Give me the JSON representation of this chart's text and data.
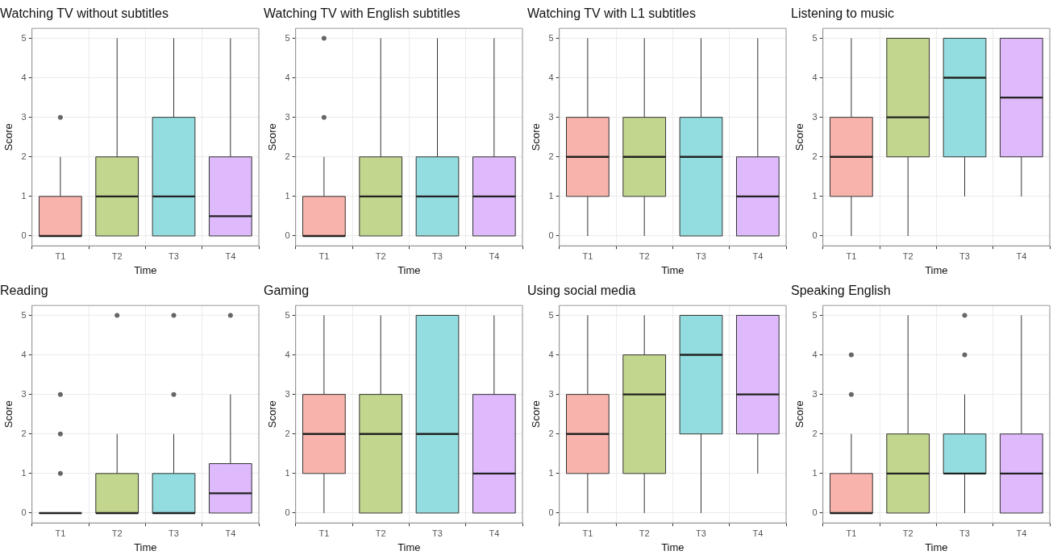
{
  "chart_data": [
    {
      "type": "box",
      "title": "Watching TV without subtitles",
      "xlabel": "Time",
      "ylabel": "Score",
      "categories": [
        "T1",
        "T2",
        "T3",
        "T4"
      ],
      "colors": [
        "#f8b3ac",
        "#c2d68e",
        "#93dde0",
        "#deb9fb"
      ],
      "ylim": [
        -0.25,
        5.25
      ],
      "yticks": [
        0,
        1,
        2,
        3,
        4,
        5
      ],
      "grid": true,
      "boxes": [
        {
          "low": 0,
          "q1": 0,
          "median": 0,
          "q3": 1,
          "high": 2,
          "outliers": [
            3
          ]
        },
        {
          "low": 0,
          "q1": 0,
          "median": 1,
          "q3": 2,
          "high": 5
        },
        {
          "low": 0,
          "q1": 0,
          "median": 1,
          "q3": 3,
          "high": 5
        },
        {
          "low": 0,
          "q1": 0,
          "median": 0.5,
          "q3": 2,
          "high": 5
        }
      ]
    },
    {
      "type": "box",
      "title": "Watching TV with English subtitles",
      "xlabel": "Time",
      "ylabel": "Score",
      "categories": [
        "T1",
        "T2",
        "T3",
        "T4"
      ],
      "colors": [
        "#f8b3ac",
        "#c2d68e",
        "#93dde0",
        "#deb9fb"
      ],
      "ylim": [
        -0.25,
        5.25
      ],
      "yticks": [
        0,
        1,
        2,
        3,
        4,
        5
      ],
      "grid": true,
      "boxes": [
        {
          "low": 0,
          "q1": 0,
          "median": 0,
          "q3": 1,
          "high": 2,
          "outliers": [
            3,
            5
          ]
        },
        {
          "low": 0,
          "q1": 0,
          "median": 1,
          "q3": 2,
          "high": 5
        },
        {
          "low": 0,
          "q1": 0,
          "median": 1,
          "q3": 2,
          "high": 5
        },
        {
          "low": 0,
          "q1": 0,
          "median": 1,
          "q3": 2,
          "high": 5
        }
      ]
    },
    {
      "type": "box",
      "title": "Watching TV with L1 subtitles",
      "xlabel": "Time",
      "ylabel": "Score",
      "categories": [
        "T1",
        "T2",
        "T3",
        "T4"
      ],
      "colors": [
        "#f8b3ac",
        "#c2d68e",
        "#93dde0",
        "#deb9fb"
      ],
      "ylim": [
        -0.25,
        5.25
      ],
      "yticks": [
        0,
        1,
        2,
        3,
        4,
        5
      ],
      "grid": true,
      "boxes": [
        {
          "low": 0,
          "q1": 1,
          "median": 2,
          "q3": 3,
          "high": 5
        },
        {
          "low": 0,
          "q1": 1,
          "median": 2,
          "q3": 3,
          "high": 5
        },
        {
          "low": 0,
          "q1": 0,
          "median": 2,
          "q3": 3,
          "high": 5
        },
        {
          "low": 0,
          "q1": 0,
          "median": 1,
          "q3": 2,
          "high": 5
        }
      ]
    },
    {
      "type": "box",
      "title": "Listening to music",
      "xlabel": "Time",
      "ylabel": "Score",
      "categories": [
        "T1",
        "T2",
        "T3",
        "T4"
      ],
      "colors": [
        "#f8b3ac",
        "#c2d68e",
        "#93dde0",
        "#deb9fb"
      ],
      "ylim": [
        -0.25,
        5.25
      ],
      "yticks": [
        0,
        1,
        2,
        3,
        4,
        5
      ],
      "grid": true,
      "boxes": [
        {
          "low": 0,
          "q1": 1,
          "median": 2,
          "q3": 3,
          "high": 5
        },
        {
          "low": 0,
          "q1": 2,
          "median": 3,
          "q3": 5,
          "high": 5
        },
        {
          "low": 1,
          "q1": 2,
          "median": 4,
          "q3": 5,
          "high": 5
        },
        {
          "low": 1,
          "q1": 2,
          "median": 3.5,
          "q3": 5,
          "high": 5
        }
      ]
    },
    {
      "type": "box",
      "title": "Reading",
      "xlabel": "Time",
      "ylabel": "Score",
      "categories": [
        "T1",
        "T2",
        "T3",
        "T4"
      ],
      "colors": [
        "#333333",
        "#c2d68e",
        "#93dde0",
        "#deb9fb"
      ],
      "ylim": [
        -0.25,
        5.25
      ],
      "yticks": [
        0,
        1,
        2,
        3,
        4,
        5
      ],
      "grid": true,
      "boxes": [
        {
          "low": 0,
          "q1": 0,
          "median": 0,
          "q3": 0,
          "high": 0,
          "outliers": [
            1,
            2,
            3
          ]
        },
        {
          "low": 0,
          "q1": 0,
          "median": 0,
          "q3": 1,
          "high": 2,
          "outliers": [
            5
          ]
        },
        {
          "low": 0,
          "q1": 0,
          "median": 0,
          "q3": 1,
          "high": 2,
          "outliers": [
            3,
            5
          ]
        },
        {
          "low": 0,
          "q1": 0,
          "median": 0.5,
          "q3": 1.25,
          "high": 3,
          "outliers": [
            5
          ]
        }
      ]
    },
    {
      "type": "box",
      "title": "Gaming",
      "xlabel": "Time",
      "ylabel": "Score",
      "categories": [
        "T1",
        "T2",
        "T3",
        "T4"
      ],
      "colors": [
        "#f8b3ac",
        "#c2d68e",
        "#93dde0",
        "#deb9fb"
      ],
      "ylim": [
        -0.25,
        5.25
      ],
      "yticks": [
        0,
        1,
        2,
        3,
        4,
        5
      ],
      "grid": true,
      "boxes": [
        {
          "low": 0,
          "q1": 1,
          "median": 2,
          "q3": 3,
          "high": 5
        },
        {
          "low": 0,
          "q1": 0,
          "median": 2,
          "q3": 3,
          "high": 5
        },
        {
          "low": 0,
          "q1": 0,
          "median": 2,
          "q3": 5,
          "high": 5
        },
        {
          "low": 0,
          "q1": 0,
          "median": 1,
          "q3": 3,
          "high": 5
        }
      ]
    },
    {
      "type": "box",
      "title": "Using social media",
      "xlabel": "Time",
      "ylabel": "Score",
      "categories": [
        "T1",
        "T2",
        "T3",
        "T4"
      ],
      "colors": [
        "#f8b3ac",
        "#c2d68e",
        "#93dde0",
        "#deb9fb"
      ],
      "ylim": [
        -0.25,
        5.25
      ],
      "yticks": [
        0,
        1,
        2,
        3,
        4,
        5
      ],
      "grid": true,
      "boxes": [
        {
          "low": 0,
          "q1": 1,
          "median": 2,
          "q3": 3,
          "high": 5
        },
        {
          "low": 0,
          "q1": 1,
          "median": 3,
          "q3": 4,
          "high": 5
        },
        {
          "low": 0,
          "q1": 2,
          "median": 4,
          "q3": 5,
          "high": 5
        },
        {
          "low": 1,
          "q1": 2,
          "median": 3,
          "q3": 5,
          "high": 5
        }
      ]
    },
    {
      "type": "box",
      "title": "Speaking English",
      "xlabel": "Time",
      "ylabel": "Score",
      "categories": [
        "T1",
        "T2",
        "T3",
        "T4"
      ],
      "colors": [
        "#f8b3ac",
        "#c2d68e",
        "#93dde0",
        "#deb9fb"
      ],
      "ylim": [
        -0.25,
        5.25
      ],
      "yticks": [
        0,
        1,
        2,
        3,
        4,
        5
      ],
      "grid": true,
      "boxes": [
        {
          "low": 0,
          "q1": 0,
          "median": 0,
          "q3": 1,
          "high": 2,
          "outliers": [
            3,
            4
          ]
        },
        {
          "low": 0,
          "q1": 0,
          "median": 1,
          "q3": 2,
          "high": 5
        },
        {
          "low": 0,
          "q1": 1,
          "median": 1,
          "q3": 2,
          "high": 3,
          "outliers": [
            4,
            5
          ]
        },
        {
          "low": 0,
          "q1": 0,
          "median": 1,
          "q3": 2,
          "high": 5
        }
      ]
    }
  ]
}
